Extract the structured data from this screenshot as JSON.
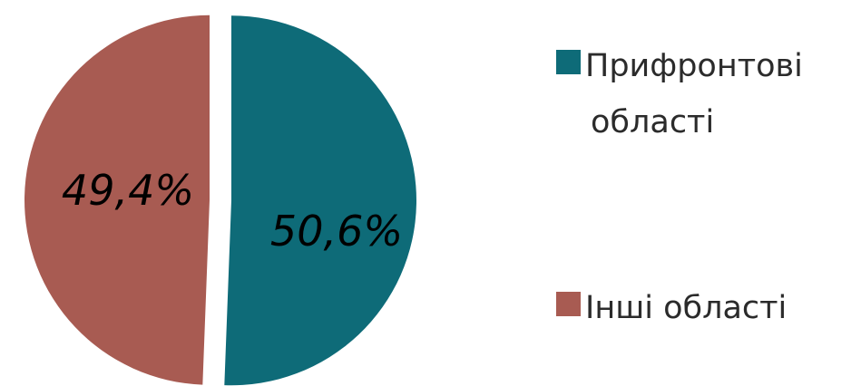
{
  "chart_data": {
    "type": "pie",
    "categories": [
      "Прифронтові області",
      "Інші області"
    ],
    "values": [
      50.6,
      49.4
    ],
    "data_labels": [
      "50,6%",
      "49,4%"
    ],
    "colors": [
      "#0e6b78",
      "#a85b52"
    ],
    "legend": {
      "placement": "right",
      "entries": [
        {
          "lines": [
            "Прифронтові",
            "області"
          ],
          "color": "#0e6b78"
        },
        {
          "lines": [
            "Інші області"
          ],
          "color": "#a85b52"
        }
      ]
    },
    "exploded": true,
    "start_angle": "top",
    "direction": "clockwise"
  }
}
